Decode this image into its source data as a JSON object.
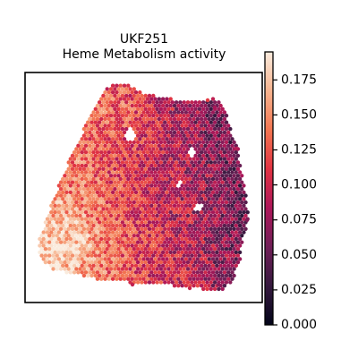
{
  "chart_data": {
    "type": "heatmap",
    "title": "UKF251",
    "subtitle": "Heme Metabolism activity",
    "colorbar": {
      "min": 0.0,
      "max": 0.195,
      "ticks": [
        "0.000",
        "0.025",
        "0.050",
        "0.075",
        "0.100",
        "0.125",
        "0.150",
        "0.175"
      ],
      "tick_values": [
        0.0,
        0.025,
        0.05,
        0.075,
        0.1,
        0.125,
        0.15,
        0.175
      ],
      "colormap": "rocket",
      "colors": [
        "#03051a",
        "#35193e",
        "#701f57",
        "#ad1759",
        "#e13342",
        "#f37651",
        "#f6b48f",
        "#faebdd"
      ]
    },
    "spots": {
      "description_free": true,
      "typical_range": [
        0.03,
        0.19
      ],
      "regions": [
        {
          "zone": "left-lower",
          "level": 0.14
        },
        {
          "zone": "center",
          "level": 0.12
        },
        {
          "zone": "right",
          "level": 0.06
        },
        {
          "zone": "top-left",
          "level": 0.15
        }
      ]
    },
    "axes": {
      "grid": false,
      "ticks_shown": false
    }
  }
}
